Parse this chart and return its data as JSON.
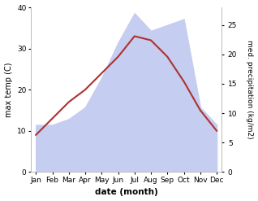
{
  "months": [
    "Jan",
    "Feb",
    "Mar",
    "Apr",
    "May",
    "Jun",
    "Jul",
    "Aug",
    "Sep",
    "Oct",
    "Nov",
    "Dec"
  ],
  "max_temp": [
    9,
    13,
    17,
    20,
    24,
    28,
    33,
    32,
    28,
    22,
    15,
    10
  ],
  "precipitation": [
    8,
    8,
    9,
    11,
    16,
    22,
    27,
    24,
    25,
    26,
    11,
    8
  ],
  "temp_color": "#b03030",
  "precip_color": "#c5cdf0",
  "left_ylabel": "max temp (C)",
  "right_ylabel": "med. precipitation (kg/m2)",
  "xlabel": "date (month)",
  "left_ylim": [
    0,
    40
  ],
  "right_ylim": [
    0,
    28
  ],
  "left_yticks": [
    0,
    10,
    20,
    30,
    40
  ],
  "right_yticks": [
    0,
    5,
    10,
    15,
    20,
    25
  ],
  "bg_color": "#ffffff"
}
